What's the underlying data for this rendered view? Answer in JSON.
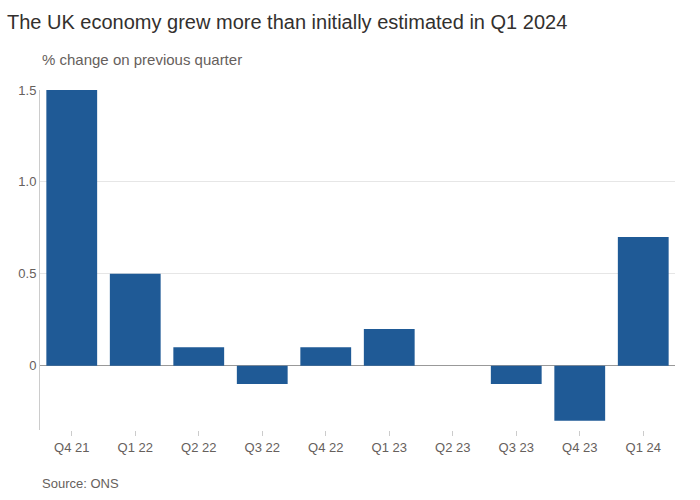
{
  "chart_data": {
    "type": "bar",
    "title": "The UK economy grew more than initially estimated in Q1 2024",
    "subtitle": "% change on previous quarter",
    "source": "Source: ONS",
    "categories": [
      "Q4 21",
      "Q1 22",
      "Q2 22",
      "Q3 22",
      "Q4 22",
      "Q1 23",
      "Q2 23",
      "Q3 23",
      "Q4 23",
      "Q1 24"
    ],
    "values": [
      1.5,
      0.5,
      0.1,
      -0.1,
      0.1,
      0.2,
      0.0,
      -0.1,
      -0.3,
      0.7
    ],
    "color": "#1f5a96",
    "ylim": [
      -0.35,
      1.5
    ],
    "yticks": [
      0,
      0.5,
      {
        "value": 1,
        "label": "1.0"
      },
      1.5
    ],
    "grid": true
  }
}
